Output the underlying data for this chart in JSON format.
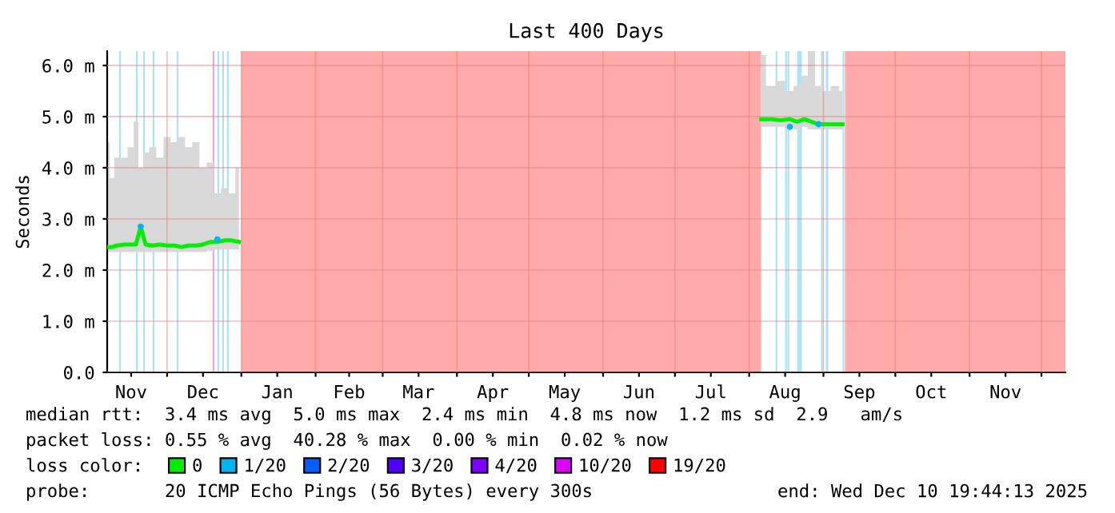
{
  "chart_data": {
    "type": "line",
    "title": "Last 400 Days",
    "ylabel": "Seconds",
    "x": [
      "2024-11-06",
      "2024-11-08",
      "2024-11-10",
      "2024-11-13",
      "2024-11-16",
      "2024-11-18",
      "2024-11-20",
      "2024-11-22",
      "2024-11-25",
      "2024-11-28",
      "2024-12-01",
      "2024-12-04",
      "2024-12-07",
      "2024-12-10",
      "2024-12-13",
      "2024-12-16",
      "2024-12-19",
      "2024-12-22",
      "2024-12-25",
      "2024-12-28",
      "2024-12-31",
      "2025-01-01",
      "2025-08-06",
      "2025-08-10",
      "2025-08-14",
      "2025-08-18",
      "2025-08-21",
      "2025-08-24",
      "2025-08-27",
      "2025-08-30",
      "2025-09-02",
      "2025-09-06",
      "2025-09-09"
    ],
    "series": [
      {
        "name": "0",
        "color": "#00ee00",
        "values": [
          2.45,
          2.45,
          2.48,
          2.5,
          2.5,
          2.5,
          2.85,
          2.5,
          2.48,
          2.5,
          2.48,
          2.48,
          2.45,
          2.48,
          2.48,
          2.5,
          2.55,
          2.55,
          2.58,
          2.58,
          2.55,
          null,
          4.95,
          4.95,
          4.93,
          4.95,
          4.9,
          4.95,
          4.9,
          4.85,
          4.85,
          4.85,
          4.85
        ],
        "lower": [
          2.35,
          2.35,
          2.35,
          2.35,
          2.35,
          2.35,
          2.35,
          2.35,
          2.35,
          2.35,
          2.35,
          2.35,
          2.35,
          2.35,
          2.35,
          2.35,
          2.37,
          2.4,
          2.4,
          2.4,
          2.4,
          null,
          4.8,
          4.8,
          4.8,
          4.8,
          4.75,
          4.8,
          4.75,
          4.75,
          4.75,
          4.75,
          4.75
        ],
        "upper": [
          4.5,
          3.8,
          4.2,
          4.2,
          4.4,
          4.9,
          4.0,
          4.3,
          4.4,
          4.2,
          4.6,
          4.5,
          4.6,
          4.4,
          4.5,
          4.0,
          4.1,
          3.5,
          3.6,
          3.5,
          4.0,
          null,
          6.2,
          5.6,
          5.7,
          5.5,
          5.6,
          5.8,
          6.28,
          5.6,
          5.5,
          5.6,
          5.5
        ]
      },
      {
        "name": "1/20",
        "color": "#00b4f0",
        "type": "scatter",
        "values": [
          null,
          null,
          null,
          null,
          null,
          null,
          2.85,
          null,
          null,
          null,
          null,
          null,
          null,
          null,
          null,
          null,
          null,
          2.6,
          null,
          null,
          null,
          null,
          null,
          null,
          null,
          4.8,
          null,
          null,
          null,
          4.85,
          null,
          null,
          null
        ]
      },
      {
        "name": "2/20",
        "color": "#0060ff",
        "type": "scatter",
        "values": [
          null,
          null,
          null,
          null,
          null,
          null,
          null,
          null,
          null,
          null,
          null,
          null,
          null,
          null,
          null,
          null,
          null,
          null,
          null,
          null,
          null,
          null,
          null,
          null,
          null,
          null,
          null,
          null,
          null,
          null,
          null,
          null,
          null
        ]
      },
      {
        "name": "3/20",
        "color": "#5000ff",
        "type": "scatter",
        "values": [
          null,
          null,
          null,
          null,
          null,
          null,
          null,
          null,
          null,
          null,
          null,
          null,
          null,
          null,
          null,
          null,
          null,
          null,
          null,
          null,
          null,
          null,
          null,
          null,
          null,
          null,
          null,
          null,
          null,
          null,
          null,
          null,
          null
        ]
      },
      {
        "name": "4/20",
        "color": "#7e00ff",
        "type": "scatter",
        "values": [
          null,
          null,
          null,
          null,
          null,
          null,
          null,
          null,
          null,
          null,
          null,
          null,
          null,
          null,
          null,
          null,
          null,
          null,
          null,
          null,
          null,
          null,
          null,
          null,
          null,
          null,
          null,
          null,
          null,
          null,
          null,
          null,
          null
        ]
      },
      {
        "name": "10/20",
        "color": "#dd00ff",
        "type": "scatter",
        "values": [
          null,
          null,
          null,
          null,
          null,
          null,
          null,
          null,
          null,
          null,
          null,
          null,
          null,
          null,
          null,
          null,
          null,
          null,
          null,
          null,
          null,
          null,
          null,
          null,
          null,
          null,
          null,
          null,
          null,
          null,
          null,
          null,
          null
        ]
      },
      {
        "name": "19/20",
        "color": "#ff0000",
        "type": "scatter",
        "values": [
          null,
          null,
          null,
          null,
          null,
          null,
          null,
          null,
          null,
          null,
          null,
          null,
          null,
          null,
          null,
          null,
          null,
          null,
          null,
          null,
          null,
          null,
          null,
          null,
          null,
          null,
          null,
          null,
          null,
          null,
          null,
          null,
          null
        ]
      }
    ],
    "legend": "bottom",
    "legend_title": "loss color:",
    "xlim": [
      "2024-11-06",
      "2025-12-11"
    ],
    "xticks": [
      {
        "value": "2024-12-01",
        "label": null
      },
      {
        "value": "2025-01-01",
        "label": null
      },
      {
        "value": "2025-02-01",
        "label": null
      },
      {
        "value": "2025-03-01",
        "label": null
      },
      {
        "value": "2025-04-01",
        "label": null
      },
      {
        "value": "2025-05-01",
        "label": null
      },
      {
        "value": "2025-06-01",
        "label": null
      },
      {
        "value": "2025-07-01",
        "label": null
      },
      {
        "value": "2025-08-01",
        "label": null
      },
      {
        "value": "2025-09-01",
        "label": null
      },
      {
        "value": "2025-10-01",
        "label": null
      },
      {
        "value": "2025-11-01",
        "label": null
      },
      {
        "value": "2025-12-01",
        "label": null
      },
      {
        "value": "2024-11-16",
        "label": "Nov"
      },
      {
        "value": "2024-12-16",
        "label": "Dec"
      },
      {
        "value": "2025-01-16",
        "label": "Jan"
      },
      {
        "value": "2025-02-15",
        "label": "Feb"
      },
      {
        "value": "2025-03-16",
        "label": "Mar"
      },
      {
        "value": "2025-04-16",
        "label": "Apr"
      },
      {
        "value": "2025-05-16",
        "label": "May"
      },
      {
        "value": "2025-06-16",
        "label": "Jun"
      },
      {
        "value": "2025-07-16",
        "label": "Jul"
      },
      {
        "value": "2025-08-16",
        "label": "Aug"
      },
      {
        "value": "2025-09-16",
        "label": "Sep"
      },
      {
        "value": "2025-10-16",
        "label": "Oct"
      },
      {
        "value": "2025-11-16",
        "label": "Nov"
      }
    ],
    "ylim": [
      0,
      6.28
    ],
    "yticks": [
      {
        "value": 0,
        "label": "0.0"
      },
      {
        "value": 1,
        "label": "1.0 m"
      },
      {
        "value": 2,
        "label": "2.0 m"
      },
      {
        "value": 3,
        "label": "3.0 m"
      },
      {
        "value": 4,
        "label": "4.0 m"
      },
      {
        "value": 5,
        "label": "5.0 m"
      },
      {
        "value": 6,
        "label": "6.0 m"
      }
    ],
    "grid": true,
    "bands": [
      {
        "axis": "x",
        "from": "2025-01-01",
        "to": "2025-08-06",
        "color": "#ffaaaa"
      },
      {
        "axis": "x",
        "from": "2025-09-10",
        "to": "2025-12-11",
        "color": "#ffaaaa"
      },
      {
        "axis": "x",
        "from": "2024-11-11",
        "to": "2024-11-11T18:00",
        "color": "#aee3f7"
      },
      {
        "axis": "x",
        "from": "2024-11-18",
        "to": "2024-11-18T18:00",
        "color": "#aee3f7"
      },
      {
        "axis": "x",
        "from": "2024-11-21",
        "to": "2024-11-21T18:00",
        "color": "#aee3f7"
      },
      {
        "axis": "x",
        "from": "2024-11-25",
        "to": "2024-11-25T18:00",
        "color": "#aee3f7"
      },
      {
        "axis": "x",
        "from": "2024-12-05",
        "to": "2024-12-05T18:00",
        "color": "#aee3f7"
      },
      {
        "axis": "x",
        "from": "2024-12-20",
        "to": "2024-12-20T18:00",
        "color": "#e8a8f0"
      },
      {
        "axis": "x",
        "from": "2024-12-22",
        "to": "2024-12-22T18:00",
        "color": "#aee3f7"
      },
      {
        "axis": "x",
        "from": "2024-12-24",
        "to": "2024-12-24T18:00",
        "color": "#aee3f7"
      },
      {
        "axis": "x",
        "from": "2024-12-26",
        "to": "2024-12-26T18:00",
        "color": "#aee3f7"
      },
      {
        "axis": "x",
        "from": "2025-08-12",
        "to": "2025-08-12T18:00",
        "color": "#aee3f7"
      },
      {
        "axis": "x",
        "from": "2025-08-16",
        "to": "2025-08-16T18:00",
        "color": "#aee3f7"
      },
      {
        "axis": "x",
        "from": "2025-08-17",
        "to": "2025-08-17T18:00",
        "color": "#aee3f7"
      },
      {
        "axis": "x",
        "from": "2025-08-21",
        "to": "2025-08-23",
        "color": "#aee3f7"
      },
      {
        "axis": "x",
        "from": "2025-08-31",
        "to": "2025-08-31T18:00",
        "color": "#aee3f7"
      },
      {
        "axis": "x",
        "from": "2025-09-02",
        "to": "2025-09-03",
        "color": "#aee3f7"
      },
      {
        "axis": "x",
        "from": "2025-09-09",
        "to": "2025-09-09T18:00",
        "color": "#aee3f7"
      }
    ],
    "annotations": [
      "median rtt:  3.4 ms avg  5.0 ms max  2.4 ms min  4.8 ms now  1.2 ms sd  2.9   am/s",
      "packet loss: 0.55 % avg  40.28 % max  0.00 % min  0.02 % now",
      "probe:       20 ICMP Echo Pings (56 Bytes) every 300s",
      "end: Wed Dec 10 19:44:13 2025"
    ]
  }
}
